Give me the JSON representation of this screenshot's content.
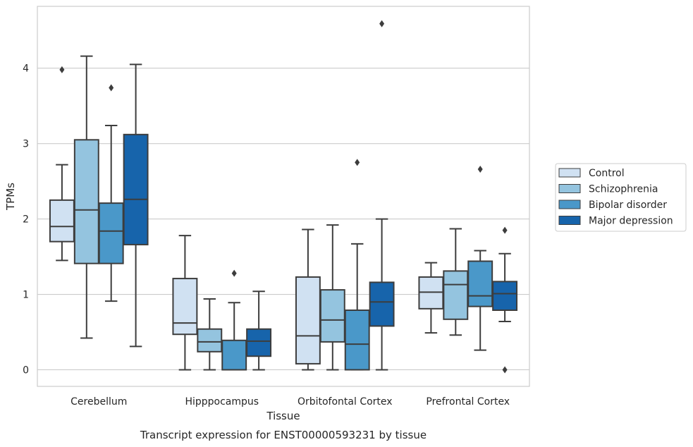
{
  "chart_data": {
    "type": "box",
    "title": "",
    "caption": "Transcript expression for ENST00000593231 by tissue",
    "xlabel": "Tissue",
    "ylabel": "TPMs",
    "ylim": [
      -0.22,
      4.82
    ],
    "yticks": [
      0,
      1,
      2,
      3,
      4
    ],
    "grid": "horizontal",
    "legend_position": "right",
    "categories": [
      "Cerebellum",
      "Hipppocampus",
      "Orbitofontal Cortex",
      "Prefrontal Cortex"
    ],
    "series": [
      {
        "name": "Control",
        "color": "#d0e1f2",
        "boxes": [
          {
            "whislo": 1.45,
            "q1": 1.7,
            "med": 1.9,
            "q3": 2.25,
            "whishi": 2.72,
            "fliers": [
              3.98
            ]
          },
          {
            "whislo": 0.0,
            "q1": 0.47,
            "med": 0.62,
            "q3": 1.21,
            "whishi": 1.78,
            "fliers": []
          },
          {
            "whislo": 0.0,
            "q1": 0.08,
            "med": 0.45,
            "q3": 1.23,
            "whishi": 1.86,
            "fliers": []
          },
          {
            "whislo": 0.49,
            "q1": 0.81,
            "med": 1.03,
            "q3": 1.23,
            "whishi": 1.42,
            "fliers": []
          }
        ]
      },
      {
        "name": "Schizophrenia",
        "color": "#94c4df",
        "boxes": [
          {
            "whislo": 0.42,
            "q1": 1.41,
            "med": 2.12,
            "q3": 3.05,
            "whishi": 4.16,
            "fliers": []
          },
          {
            "whislo": 0.0,
            "q1": 0.24,
            "med": 0.37,
            "q3": 0.54,
            "whishi": 0.94,
            "fliers": []
          },
          {
            "whislo": 0.0,
            "q1": 0.37,
            "med": 0.66,
            "q3": 1.06,
            "whishi": 1.92,
            "fliers": []
          },
          {
            "whislo": 0.46,
            "q1": 0.67,
            "med": 1.13,
            "q3": 1.31,
            "whishi": 1.87,
            "fliers": []
          }
        ]
      },
      {
        "name": "Bipolar disorder",
        "color": "#4a98c9",
        "boxes": [
          {
            "whislo": 0.91,
            "q1": 1.41,
            "med": 1.84,
            "q3": 2.21,
            "whishi": 3.24,
            "fliers": [
              3.74
            ]
          },
          {
            "whislo": 0.0,
            "q1": 0.0,
            "med": 0.0,
            "q3": 0.39,
            "whishi": 0.89,
            "fliers": [
              1.28
            ]
          },
          {
            "whislo": 0.0,
            "q1": 0.0,
            "med": 0.34,
            "q3": 0.79,
            "whishi": 1.67,
            "fliers": [
              2.75
            ]
          },
          {
            "whislo": 0.26,
            "q1": 0.84,
            "med": 0.98,
            "q3": 1.44,
            "whishi": 1.58,
            "fliers": [
              2.66
            ]
          }
        ]
      },
      {
        "name": "Major depression",
        "color": "#1764ab",
        "boxes": [
          {
            "whislo": 0.31,
            "q1": 1.66,
            "med": 2.26,
            "q3": 3.12,
            "whishi": 4.05,
            "fliers": []
          },
          {
            "whislo": 0.0,
            "q1": 0.18,
            "med": 0.38,
            "q3": 0.54,
            "whishi": 1.04,
            "fliers": []
          },
          {
            "whislo": 0.0,
            "q1": 0.58,
            "med": 0.9,
            "q3": 1.16,
            "whishi": 2.0,
            "fliers": [
              4.59
            ]
          },
          {
            "whislo": 0.64,
            "q1": 0.79,
            "med": 1.01,
            "q3": 1.17,
            "whishi": 1.54,
            "fliers": [
              1.85,
              0.0
            ]
          }
        ]
      }
    ]
  }
}
